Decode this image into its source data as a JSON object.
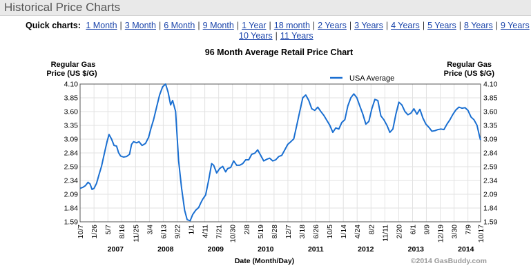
{
  "header": {
    "title": "Historical Price Charts"
  },
  "quick_charts": {
    "label": "Quick charts:",
    "row1": [
      "1 Month",
      "3 Month",
      "6 Month",
      "9 Month",
      "1 Year",
      "18 month",
      "2 Years",
      "3 Years",
      "4 Years",
      "5 Years",
      "8 Years",
      "9 Years"
    ],
    "row2": [
      "10 Years",
      "11 Years"
    ]
  },
  "chart_data": {
    "type": "line",
    "title": "96 Month Average Retail Price Chart",
    "ylabel_left": [
      "Regular Gas",
      "Price (US $/G)"
    ],
    "ylabel_right": [
      "Regular Gas",
      "Price (US $/G)"
    ],
    "xlabel": "Date (Month/Day)",
    "credit": "©2014 GasBuddy.com",
    "ylim": [
      1.59,
      4.1
    ],
    "yticks": [
      "4.10",
      "3.85",
      "3.60",
      "3.35",
      "3.09",
      "2.84",
      "2.59",
      "2.34",
      "2.09",
      "1.84",
      "1.59"
    ],
    "xlim": [
      2006.792,
      2014.792
    ],
    "xticks": [
      {
        "label": "10/7",
        "t": 2006.792
      },
      {
        "label": "1/26",
        "t": 2007.07
      },
      {
        "label": "5/7",
        "t": 2007.347
      },
      {
        "label": "8/16",
        "t": 2007.623
      },
      {
        "label": "11/25",
        "t": 2007.9
      },
      {
        "label": "3/4",
        "t": 2008.177
      },
      {
        "label": "6/13",
        "t": 2008.453
      },
      {
        "label": "9/22",
        "t": 2008.73
      },
      {
        "label": "1/1",
        "t": 2009.007
      },
      {
        "label": "4/11",
        "t": 2009.283
      },
      {
        "label": "7/21",
        "t": 2009.56
      },
      {
        "label": "10/30",
        "t": 2009.836
      },
      {
        "label": "2/8",
        "t": 2010.113
      },
      {
        "label": "5/19",
        "t": 2010.39
      },
      {
        "label": "8/28",
        "t": 2010.666
      },
      {
        "label": "12/7",
        "t": 2010.943
      },
      {
        "label": "3/18",
        "t": 2011.22
      },
      {
        "label": "6/26",
        "t": 2011.496
      },
      {
        "label": "10/5",
        "t": 2011.773
      },
      {
        "label": "1/14",
        "t": 2012.05
      },
      {
        "label": "4/24",
        "t": 2012.326
      },
      {
        "label": "8/2",
        "t": 2012.603
      },
      {
        "label": "11/11",
        "t": 2012.88
      },
      {
        "label": "2/20",
        "t": 2013.156
      },
      {
        "label": "6/1",
        "t": 2013.433
      },
      {
        "label": "9/9",
        "t": 2013.709
      },
      {
        "label": "12/19",
        "t": 2013.986
      },
      {
        "label": "3/30",
        "t": 2014.263
      },
      {
        "label": "7/9",
        "t": 2014.539
      },
      {
        "label": "10/17",
        "t": 2014.792
      }
    ],
    "year_labels": [
      {
        "label": "2007",
        "t": 2007.5
      },
      {
        "label": "2008",
        "t": 2008.5
      },
      {
        "label": "2009",
        "t": 2009.5
      },
      {
        "label": "2010",
        "t": 2010.5
      },
      {
        "label": "2011",
        "t": 2011.5
      },
      {
        "label": "2012",
        "t": 2012.5
      },
      {
        "label": "2013",
        "t": 2013.5
      },
      {
        "label": "2014",
        "t": 2014.5
      }
    ],
    "legend_position": "top-right",
    "grid": true,
    "color": "#1a6fd1",
    "series": [
      {
        "name": "USA Average",
        "points": [
          [
            2006.79,
            2.2
          ],
          [
            2006.85,
            2.22
          ],
          [
            2006.9,
            2.25
          ],
          [
            2006.95,
            2.31
          ],
          [
            2006.99,
            2.28
          ],
          [
            2007.03,
            2.18
          ],
          [
            2007.07,
            2.2
          ],
          [
            2007.12,
            2.29
          ],
          [
            2007.17,
            2.45
          ],
          [
            2007.22,
            2.6
          ],
          [
            2007.28,
            2.85
          ],
          [
            2007.33,
            3.05
          ],
          [
            2007.37,
            3.18
          ],
          [
            2007.42,
            3.1
          ],
          [
            2007.47,
            2.98
          ],
          [
            2007.52,
            2.97
          ],
          [
            2007.56,
            2.85
          ],
          [
            2007.6,
            2.79
          ],
          [
            2007.66,
            2.77
          ],
          [
            2007.72,
            2.78
          ],
          [
            2007.78,
            2.82
          ],
          [
            2007.82,
            3.0
          ],
          [
            2007.86,
            3.05
          ],
          [
            2007.92,
            3.03
          ],
          [
            2007.97,
            3.05
          ],
          [
            2008.03,
            2.98
          ],
          [
            2008.1,
            3.02
          ],
          [
            2008.16,
            3.13
          ],
          [
            2008.21,
            3.3
          ],
          [
            2008.26,
            3.45
          ],
          [
            2008.32,
            3.68
          ],
          [
            2008.38,
            3.9
          ],
          [
            2008.44,
            4.05
          ],
          [
            2008.5,
            4.1
          ],
          [
            2008.55,
            3.95
          ],
          [
            2008.6,
            3.72
          ],
          [
            2008.64,
            3.8
          ],
          [
            2008.7,
            3.6
          ],
          [
            2008.76,
            2.7
          ],
          [
            2008.82,
            2.2
          ],
          [
            2008.88,
            1.8
          ],
          [
            2008.93,
            1.63
          ],
          [
            2008.99,
            1.61
          ],
          [
            2009.04,
            1.72
          ],
          [
            2009.1,
            1.8
          ],
          [
            2009.16,
            1.85
          ],
          [
            2009.2,
            1.93
          ],
          [
            2009.24,
            2.0
          ],
          [
            2009.3,
            2.08
          ],
          [
            2009.36,
            2.35
          ],
          [
            2009.42,
            2.65
          ],
          [
            2009.46,
            2.62
          ],
          [
            2009.52,
            2.48
          ],
          [
            2009.58,
            2.56
          ],
          [
            2009.64,
            2.6
          ],
          [
            2009.7,
            2.5
          ],
          [
            2009.74,
            2.56
          ],
          [
            2009.8,
            2.58
          ],
          [
            2009.86,
            2.7
          ],
          [
            2009.92,
            2.62
          ],
          [
            2009.98,
            2.62
          ],
          [
            2010.04,
            2.65
          ],
          [
            2010.1,
            2.72
          ],
          [
            2010.16,
            2.72
          ],
          [
            2010.22,
            2.82
          ],
          [
            2010.28,
            2.84
          ],
          [
            2010.34,
            2.9
          ],
          [
            2010.4,
            2.8
          ],
          [
            2010.46,
            2.7
          ],
          [
            2010.52,
            2.73
          ],
          [
            2010.58,
            2.75
          ],
          [
            2010.64,
            2.7
          ],
          [
            2010.7,
            2.72
          ],
          [
            2010.76,
            2.78
          ],
          [
            2010.82,
            2.8
          ],
          [
            2010.88,
            2.9
          ],
          [
            2010.94,
            3.0
          ],
          [
            2011.0,
            3.05
          ],
          [
            2011.06,
            3.1
          ],
          [
            2011.12,
            3.35
          ],
          [
            2011.18,
            3.6
          ],
          [
            2011.24,
            3.85
          ],
          [
            2011.3,
            3.9
          ],
          [
            2011.36,
            3.8
          ],
          [
            2011.42,
            3.65
          ],
          [
            2011.48,
            3.62
          ],
          [
            2011.54,
            3.68
          ],
          [
            2011.6,
            3.6
          ],
          [
            2011.66,
            3.53
          ],
          [
            2011.72,
            3.44
          ],
          [
            2011.78,
            3.35
          ],
          [
            2011.84,
            3.22
          ],
          [
            2011.9,
            3.3
          ],
          [
            2011.96,
            3.28
          ],
          [
            2012.02,
            3.4
          ],
          [
            2012.08,
            3.45
          ],
          [
            2012.14,
            3.7
          ],
          [
            2012.2,
            3.85
          ],
          [
            2012.26,
            3.92
          ],
          [
            2012.32,
            3.85
          ],
          [
            2012.38,
            3.7
          ],
          [
            2012.44,
            3.55
          ],
          [
            2012.5,
            3.37
          ],
          [
            2012.56,
            3.42
          ],
          [
            2012.62,
            3.65
          ],
          [
            2012.68,
            3.82
          ],
          [
            2012.74,
            3.8
          ],
          [
            2012.8,
            3.52
          ],
          [
            2012.86,
            3.45
          ],
          [
            2012.92,
            3.35
          ],
          [
            2012.98,
            3.22
          ],
          [
            2013.04,
            3.28
          ],
          [
            2013.1,
            3.55
          ],
          [
            2013.16,
            3.77
          ],
          [
            2013.22,
            3.72
          ],
          [
            2013.28,
            3.6
          ],
          [
            2013.34,
            3.54
          ],
          [
            2013.4,
            3.57
          ],
          [
            2013.46,
            3.65
          ],
          [
            2013.52,
            3.55
          ],
          [
            2013.58,
            3.64
          ],
          [
            2013.64,
            3.48
          ],
          [
            2013.7,
            3.37
          ],
          [
            2013.76,
            3.31
          ],
          [
            2013.82,
            3.24
          ],
          [
            2013.88,
            3.25
          ],
          [
            2013.94,
            3.27
          ],
          [
            2014.0,
            3.28
          ],
          [
            2014.06,
            3.27
          ],
          [
            2014.12,
            3.37
          ],
          [
            2014.18,
            3.45
          ],
          [
            2014.24,
            3.55
          ],
          [
            2014.3,
            3.63
          ],
          [
            2014.36,
            3.68
          ],
          [
            2014.42,
            3.66
          ],
          [
            2014.48,
            3.67
          ],
          [
            2014.54,
            3.62
          ],
          [
            2014.6,
            3.5
          ],
          [
            2014.66,
            3.45
          ],
          [
            2014.72,
            3.35
          ],
          [
            2014.77,
            3.15
          ],
          [
            2014.79,
            3.08
          ]
        ]
      }
    ]
  }
}
